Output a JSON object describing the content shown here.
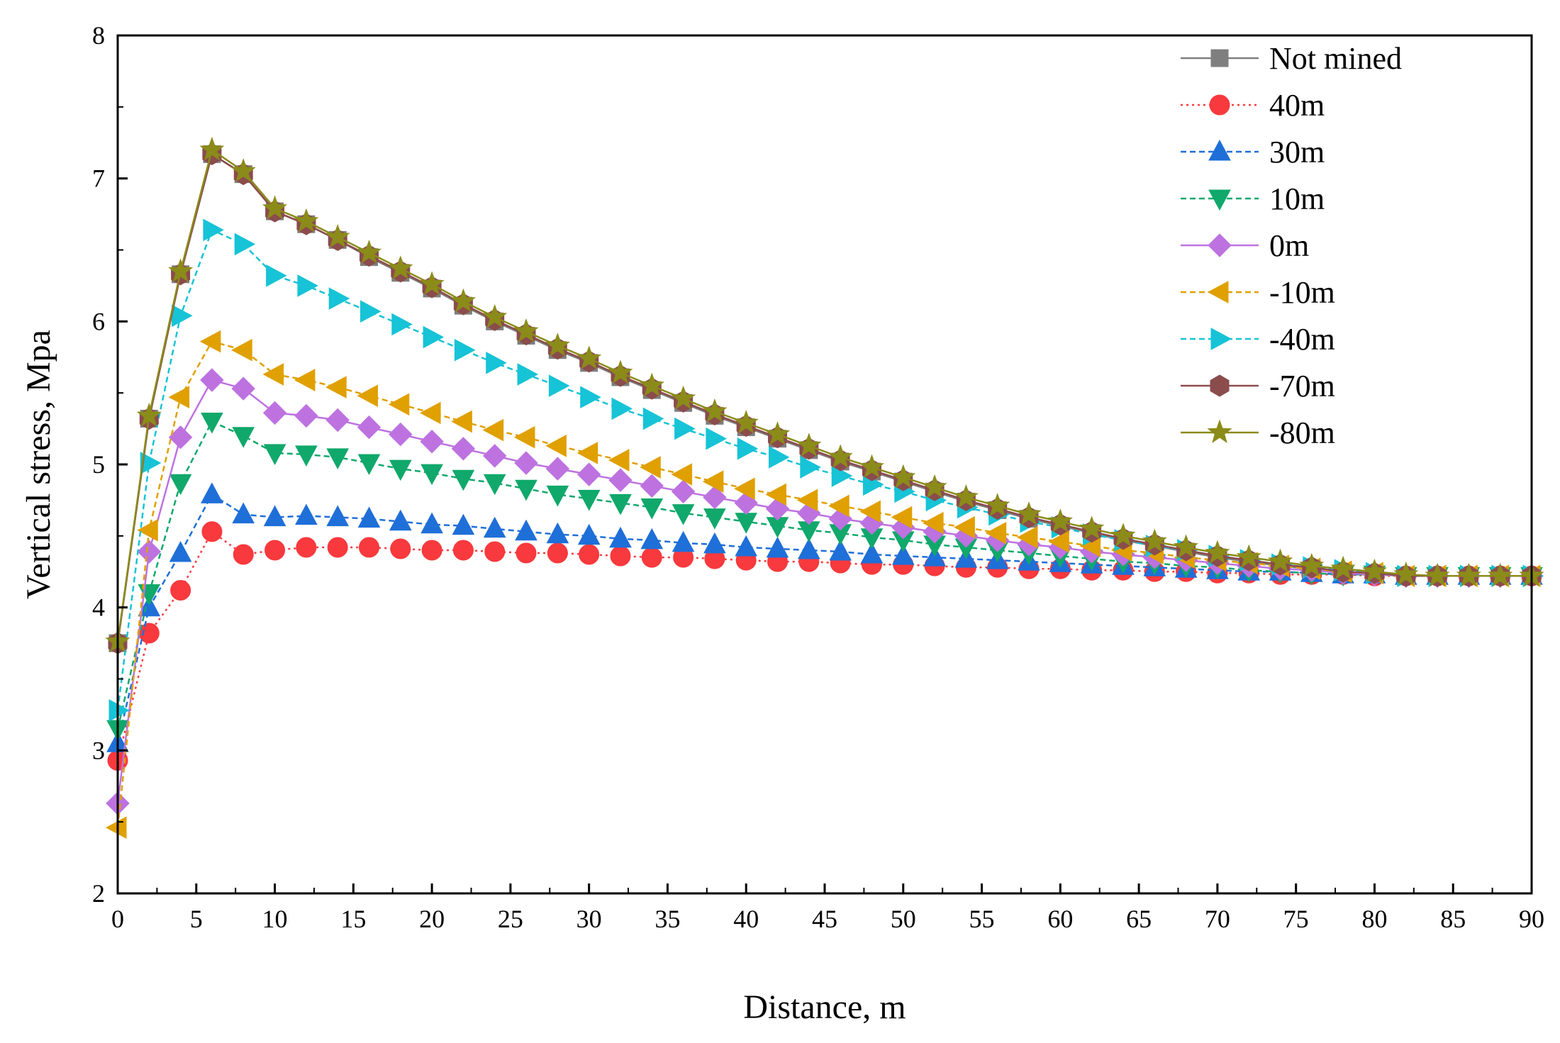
{
  "chart_data": {
    "type": "line",
    "xlabel": "Distance, m",
    "ylabel": "Vertical stress, Mpa",
    "xlim": [
      0,
      90
    ],
    "ylim": [
      2,
      8
    ],
    "xticks": [
      0,
      5,
      10,
      15,
      20,
      25,
      30,
      35,
      40,
      45,
      50,
      55,
      60,
      65,
      70,
      75,
      80,
      85,
      90
    ],
    "yticks": [
      2,
      3,
      4,
      5,
      6,
      7,
      8
    ],
    "legend_position": "top-right",
    "x": [
      0,
      2,
      4,
      6,
      8,
      10,
      12,
      14,
      16,
      18,
      20,
      22,
      24,
      26,
      28,
      30,
      32,
      34,
      36,
      38,
      40,
      42,
      44,
      46,
      48,
      50,
      52,
      54,
      56,
      58,
      60,
      62,
      64,
      66,
      68,
      70,
      72,
      74,
      76,
      78,
      80,
      82,
      84,
      86,
      88,
      90
    ],
    "series": [
      {
        "name": "Not mined",
        "color": "#7f7f7f",
        "marker": "square",
        "dash": "solid",
        "values": [
          3.75,
          5.32,
          6.33,
          7.17,
          7.03,
          6.77,
          6.68,
          6.57,
          6.45,
          6.34,
          6.23,
          6.11,
          6.0,
          5.9,
          5.8,
          5.71,
          5.61,
          5.52,
          5.43,
          5.34,
          5.26,
          5.18,
          5.1,
          5.02,
          4.95,
          4.88,
          4.81,
          4.74,
          4.68,
          4.62,
          4.57,
          4.52,
          4.47,
          4.43,
          4.39,
          4.35,
          4.32,
          4.29,
          4.27,
          4.25,
          4.23,
          4.22,
          4.22,
          4.22,
          4.22,
          4.22
        ]
      },
      {
        "name": "40m",
        "color": "#f8393d",
        "marker": "circle",
        "dash": "dot",
        "values": [
          2.93,
          3.82,
          4.12,
          4.53,
          4.37,
          4.4,
          4.42,
          4.42,
          4.42,
          4.41,
          4.4,
          4.4,
          4.39,
          4.38,
          4.38,
          4.37,
          4.36,
          4.35,
          4.35,
          4.34,
          4.33,
          4.32,
          4.32,
          4.31,
          4.3,
          4.3,
          4.29,
          4.28,
          4.28,
          4.27,
          4.27,
          4.26,
          4.26,
          4.25,
          4.25,
          4.24,
          4.24,
          4.23,
          4.23,
          4.23,
          4.22,
          4.22,
          4.22,
          4.22,
          4.22,
          4.22
        ]
      },
      {
        "name": "30m",
        "color": "#1f6fd8",
        "marker": "triangle-up",
        "dash": "dash",
        "values": [
          3.05,
          4.0,
          4.38,
          4.79,
          4.65,
          4.63,
          4.64,
          4.63,
          4.62,
          4.6,
          4.58,
          4.57,
          4.55,
          4.53,
          4.51,
          4.5,
          4.48,
          4.47,
          4.45,
          4.44,
          4.42,
          4.41,
          4.4,
          4.39,
          4.37,
          4.36,
          4.35,
          4.34,
          4.33,
          4.32,
          4.31,
          4.3,
          4.29,
          4.28,
          4.27,
          4.26,
          4.25,
          4.25,
          4.24,
          4.23,
          4.23,
          4.22,
          4.22,
          4.22,
          4.22,
          4.22
        ]
      },
      {
        "name": "10m",
        "color": "#10a86b",
        "marker": "triangle-down",
        "dash": "dash",
        "values": [
          3.15,
          4.1,
          4.87,
          5.3,
          5.2,
          5.08,
          5.07,
          5.05,
          5.01,
          4.97,
          4.94,
          4.9,
          4.87,
          4.83,
          4.79,
          4.76,
          4.73,
          4.7,
          4.66,
          4.63,
          4.6,
          4.57,
          4.54,
          4.52,
          4.49,
          4.47,
          4.44,
          4.42,
          4.4,
          4.38,
          4.36,
          4.34,
          4.32,
          4.31,
          4.29,
          4.28,
          4.26,
          4.25,
          4.24,
          4.23,
          4.23,
          4.22,
          4.22,
          4.22,
          4.22,
          4.22
        ]
      },
      {
        "name": "0m",
        "color": "#bd72e0",
        "marker": "diamond",
        "dash": "solid",
        "values": [
          2.63,
          4.39,
          5.19,
          5.59,
          5.53,
          5.36,
          5.34,
          5.31,
          5.26,
          5.21,
          5.16,
          5.11,
          5.06,
          5.01,
          4.97,
          4.93,
          4.89,
          4.85,
          4.81,
          4.77,
          4.73,
          4.69,
          4.66,
          4.62,
          4.59,
          4.56,
          4.53,
          4.5,
          4.47,
          4.44,
          4.42,
          4.39,
          4.37,
          4.35,
          4.33,
          4.31,
          4.29,
          4.27,
          4.26,
          4.24,
          4.23,
          4.22,
          4.22,
          4.22,
          4.22,
          4.22
        ]
      },
      {
        "name": "-10m",
        "color": "#e0a000",
        "marker": "triangle-left",
        "dash": "dash",
        "values": [
          2.46,
          4.54,
          5.47,
          5.86,
          5.8,
          5.63,
          5.59,
          5.54,
          5.48,
          5.42,
          5.36,
          5.3,
          5.24,
          5.19,
          5.13,
          5.08,
          5.03,
          4.98,
          4.93,
          4.88,
          4.83,
          4.79,
          4.75,
          4.71,
          4.67,
          4.63,
          4.59,
          4.56,
          4.52,
          4.49,
          4.46,
          4.43,
          4.4,
          4.38,
          4.35,
          4.33,
          4.31,
          4.29,
          4.27,
          4.25,
          4.24,
          4.22,
          4.22,
          4.22,
          4.22,
          4.22
        ]
      },
      {
        "name": "-40m",
        "color": "#17c3d6",
        "marker": "triangle-right",
        "dash": "dash",
        "values": [
          3.28,
          5.01,
          6.04,
          6.64,
          6.54,
          6.32,
          6.25,
          6.16,
          6.07,
          5.98,
          5.89,
          5.8,
          5.71,
          5.63,
          5.55,
          5.47,
          5.39,
          5.32,
          5.25,
          5.18,
          5.11,
          5.05,
          4.98,
          4.92,
          4.86,
          4.81,
          4.75,
          4.7,
          4.65,
          4.6,
          4.56,
          4.51,
          4.47,
          4.43,
          4.4,
          4.36,
          4.33,
          4.3,
          4.28,
          4.26,
          4.24,
          4.22,
          4.22,
          4.22,
          4.22,
          4.22
        ]
      },
      {
        "name": "-70m",
        "color": "#8b4c4c",
        "marker": "hexagon",
        "dash": "solid",
        "values": [
          3.75,
          5.32,
          6.33,
          7.17,
          7.03,
          6.77,
          6.68,
          6.57,
          6.46,
          6.35,
          6.24,
          6.12,
          6.01,
          5.91,
          5.81,
          5.72,
          5.62,
          5.53,
          5.44,
          5.35,
          5.27,
          5.19,
          5.11,
          5.03,
          4.96,
          4.89,
          4.82,
          4.75,
          4.69,
          4.63,
          4.58,
          4.53,
          4.48,
          4.44,
          4.4,
          4.36,
          4.33,
          4.3,
          4.28,
          4.25,
          4.24,
          4.22,
          4.22,
          4.22,
          4.22,
          4.22
        ]
      },
      {
        "name": "-80m",
        "color": "#8b8b1a",
        "marker": "star",
        "dash": "solid",
        "values": [
          3.76,
          5.34,
          6.35,
          7.2,
          7.05,
          6.79,
          6.7,
          6.59,
          6.48,
          6.37,
          6.26,
          6.14,
          6.03,
          5.93,
          5.83,
          5.74,
          5.64,
          5.55,
          5.46,
          5.37,
          5.29,
          5.21,
          5.13,
          5.05,
          4.98,
          4.91,
          4.84,
          4.77,
          4.71,
          4.65,
          4.6,
          4.55,
          4.5,
          4.46,
          4.42,
          4.38,
          4.35,
          4.32,
          4.29,
          4.27,
          4.25,
          4.23,
          4.22,
          4.22,
          4.22,
          4.22
        ]
      }
    ]
  }
}
